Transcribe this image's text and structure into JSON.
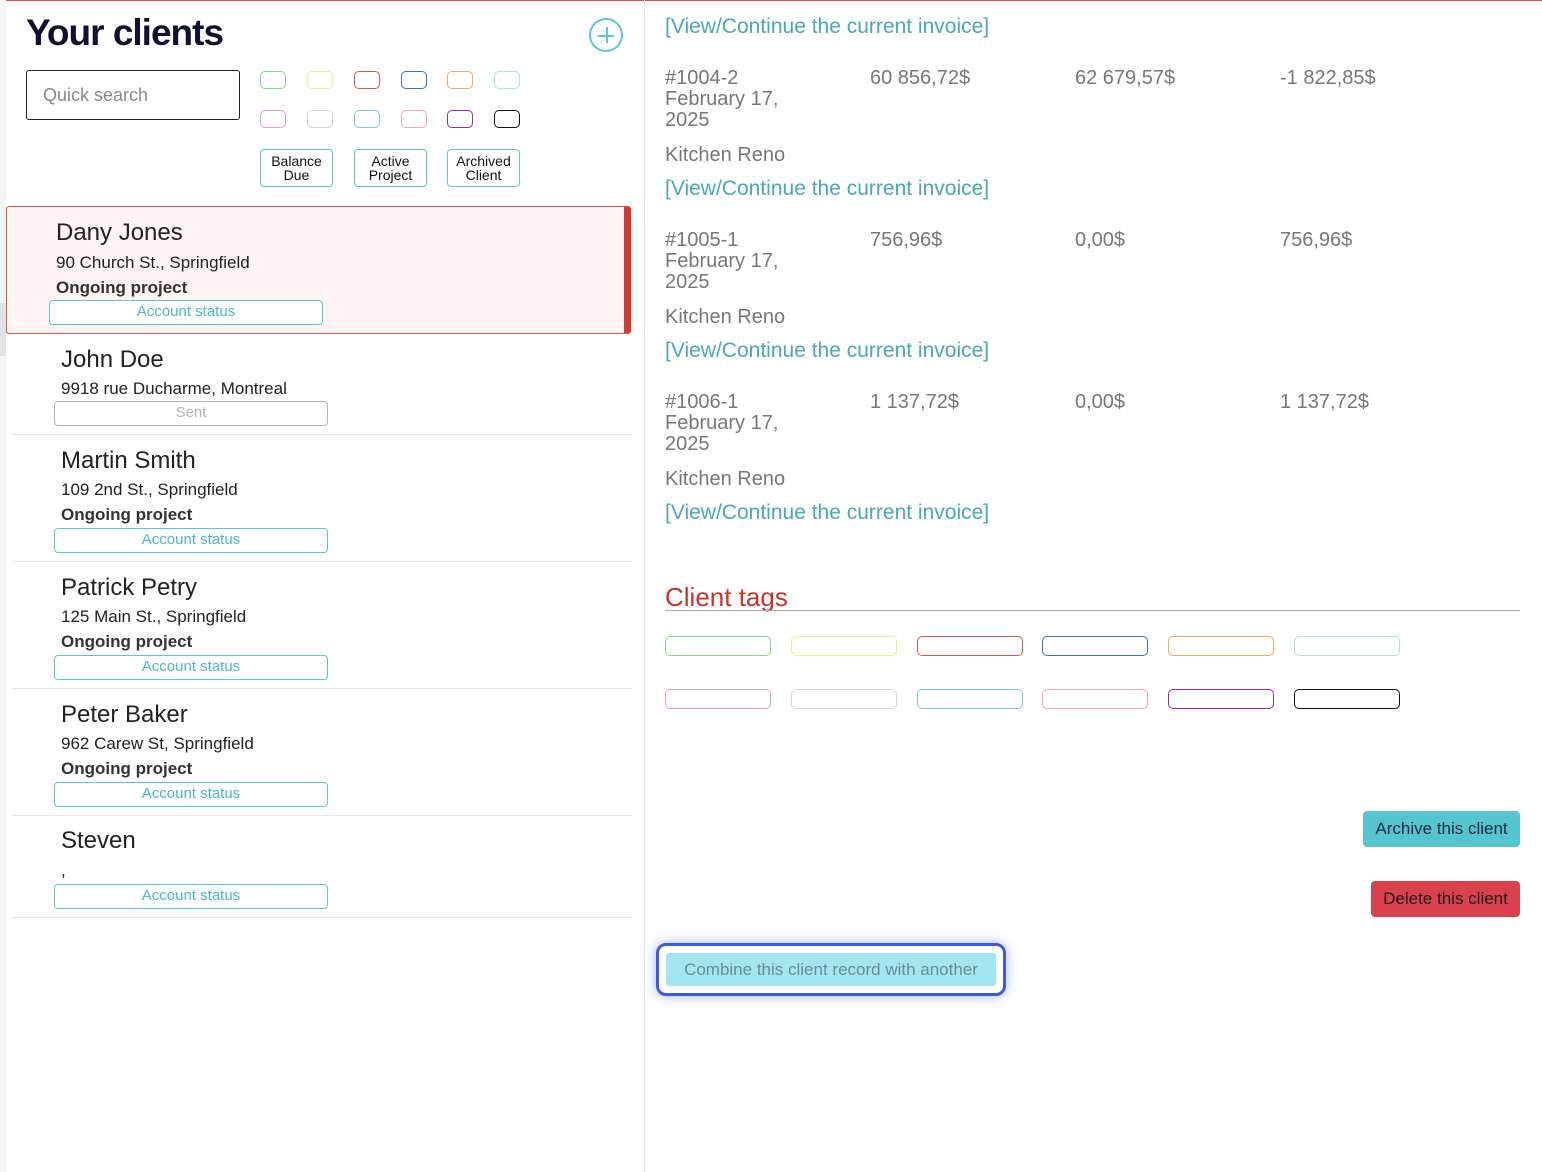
{
  "header": {
    "title": "Your clients"
  },
  "search": {
    "placeholder": "Quick search"
  },
  "swatch_colors": [
    "#7be07b",
    "#f1ef7c",
    "#d9534f",
    "#3b6fd1",
    "#f0ad4e",
    "#a8e6e0",
    "#e29ae6",
    "#d6d6d6",
    "#7ec8e3",
    "#f2a9a9",
    "#9c27b0",
    "#111111"
  ],
  "filters": [
    {
      "line1": "Balance",
      "line2": "Due"
    },
    {
      "line1": "Active",
      "line2": "Project"
    },
    {
      "line1": "Archived",
      "line2": "Client"
    }
  ],
  "clients": [
    {
      "name": "Dany Jones",
      "address": "90 Church St., Springfield",
      "status": "Ongoing project",
      "account": "Account status"
    },
    {
      "name": "John Doe",
      "address": "9918 rue Ducharme, Montreal",
      "status": "",
      "account": "Sent"
    },
    {
      "name": "Martin Smith",
      "address": "109 2nd St., Springfield",
      "status": "Ongoing project",
      "account": "Account status"
    },
    {
      "name": "Patrick Petry",
      "address": "125 Main St., Springfield",
      "status": "Ongoing project",
      "account": "Account status"
    },
    {
      "name": "Peter Baker",
      "address": "962 Carew St, Springfield",
      "status": "Ongoing project",
      "account": "Account status"
    },
    {
      "name": "Steven",
      "address": ",",
      "status": "",
      "account": "Account status"
    }
  ],
  "invoice_link_text": "[View/Continue the current invoice]",
  "invoices": [
    {
      "number": "#1004-2",
      "date": "February 17, 2025",
      "amount": "60 856,72$",
      "paid": "62 679,57$",
      "balance": "-1 822,85$",
      "project": "Kitchen Reno"
    },
    {
      "number": "#1005-1",
      "date": "February 17, 2025",
      "amount": "756,96$",
      "paid": "0,00$",
      "balance": "756,96$",
      "project": "Kitchen Reno"
    },
    {
      "number": "#1006-1",
      "date": "February 17, 2025",
      "amount": "1 137,72$",
      "paid": "0,00$",
      "balance": "1 137,72$",
      "project": "Kitchen Reno"
    }
  ],
  "tags": {
    "title": "Client tags"
  },
  "actions": {
    "archive": "Archive this client",
    "delete": "Delete this client",
    "combine": "Combine this client record with another"
  }
}
